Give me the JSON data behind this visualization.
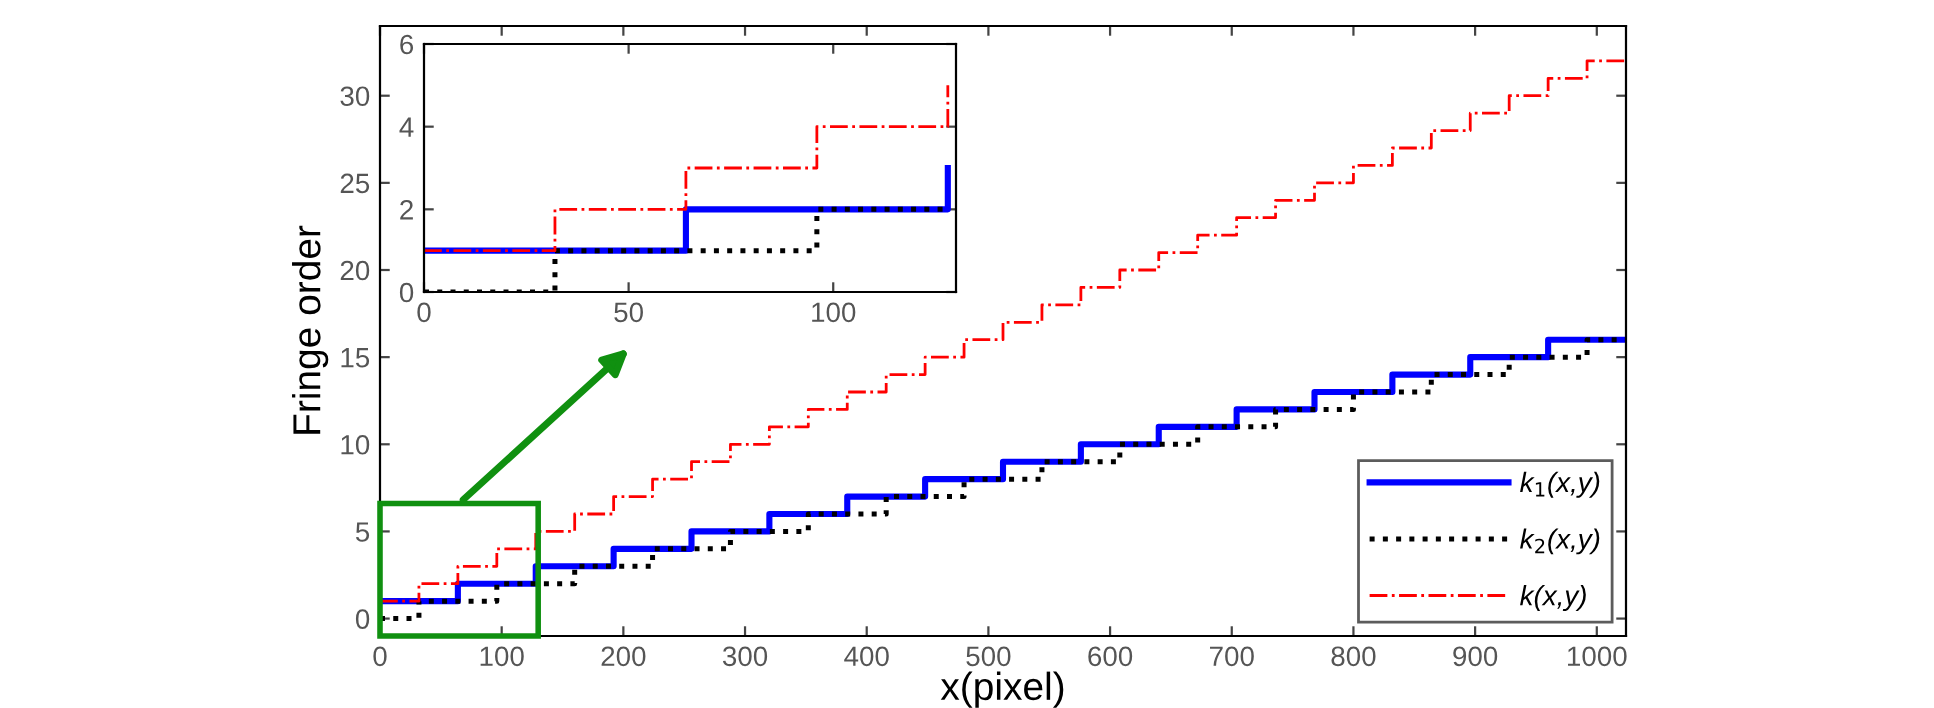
{
  "chart_data": [
    {
      "type": "step",
      "xlabel": "x(pixel)",
      "ylabel": "Fringe order",
      "xlim": [
        0,
        1024
      ],
      "ylim": [
        -1,
        34
      ],
      "xticks": [
        0,
        100,
        200,
        300,
        400,
        500,
        600,
        700,
        800,
        900,
        1000
      ],
      "yticks": [
        0,
        5,
        10,
        15,
        20,
        25,
        30
      ],
      "legend": "bottom right",
      "grid": false,
      "series": [
        {
          "name": "k$_{1}$(x,y)",
          "color": "#0000ff",
          "line_style": "solid",
          "x": [
            0,
            64,
            128,
            192,
            256,
            320,
            384,
            448,
            512,
            576,
            640,
            704,
            768,
            832,
            896,
            960,
            1024
          ],
          "values": [
            1,
            2,
            3,
            4,
            5,
            6,
            7,
            8,
            9,
            10,
            11,
            12,
            13,
            14,
            15,
            16,
            16
          ]
        },
        {
          "name": "k$_{2}$(x,y)",
          "color": "#000000",
          "line_style": "dotted",
          "x": [
            0,
            32,
            96,
            160,
            224,
            288,
            352,
            416,
            480,
            544,
            608,
            672,
            736,
            800,
            864,
            928,
            992,
            1024
          ],
          "values": [
            0,
            1,
            2,
            3,
            4,
            5,
            6,
            7,
            8,
            9,
            10,
            11,
            12,
            13,
            14,
            15,
            16,
            16
          ]
        },
        {
          "name": "k(x,y)",
          "color": "#ff0000",
          "line_style": "dashdot",
          "x": [
            0,
            32,
            64,
            96,
            128,
            160,
            192,
            224,
            256,
            288,
            320,
            352,
            384,
            416,
            448,
            480,
            512,
            544,
            576,
            608,
            640,
            672,
            704,
            736,
            768,
            800,
            832,
            864,
            896,
            928,
            960,
            992,
            1024
          ],
          "values": [
            1,
            2,
            3,
            4,
            5,
            6,
            7,
            8,
            9,
            10,
            11,
            12,
            13,
            14,
            15,
            16,
            17,
            18,
            19,
            20,
            21,
            22,
            23,
            24,
            25,
            26,
            27,
            28,
            29,
            30,
            31,
            32,
            32
          ]
        }
      ]
    },
    {
      "type": "step",
      "xlim": [
        0,
        130
      ],
      "ylim": [
        0,
        6
      ],
      "xticks": [
        0,
        50,
        100
      ],
      "yticks": [
        0,
        2,
        4,
        6
      ],
      "grid": false,
      "series": [
        {
          "color": "#0000ff",
          "line_style": "solid",
          "x": [
            0,
            64,
            128
          ],
          "values": [
            1,
            2,
            3
          ]
        },
        {
          "color": "#000000",
          "line_style": "dotted",
          "x": [
            0,
            32,
            96,
            128
          ],
          "values": [
            0,
            1,
            2,
            2
          ]
        },
        {
          "color": "#ff0000",
          "line_style": "dashdot",
          "x": [
            0,
            32,
            64,
            96,
            128
          ],
          "values": [
            1,
            2,
            3,
            4,
            5
          ]
        }
      ]
    }
  ]
}
